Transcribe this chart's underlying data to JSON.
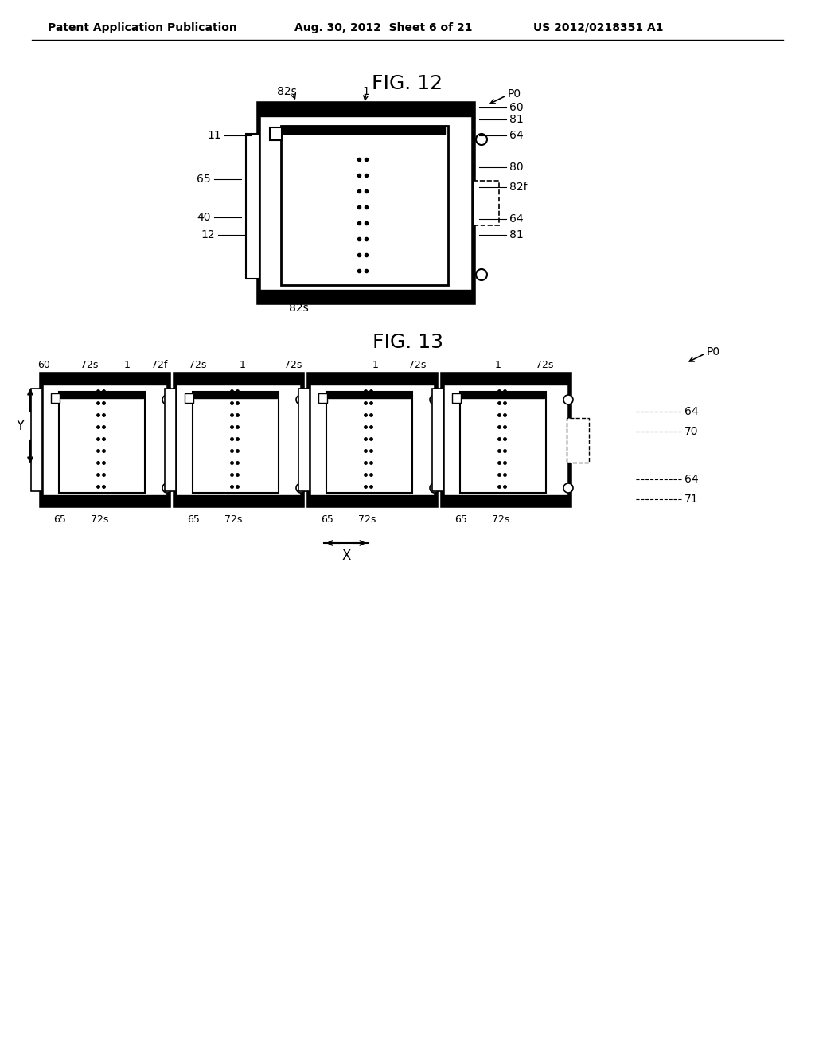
{
  "bg_color": "#ffffff",
  "header_left": "Patent Application Publication",
  "header_mid": "Aug. 30, 2012  Sheet 6 of 21",
  "header_right": "US 2012/0218351 A1",
  "fig12_title": "FIG. 12",
  "fig13_title": "FIG. 13"
}
